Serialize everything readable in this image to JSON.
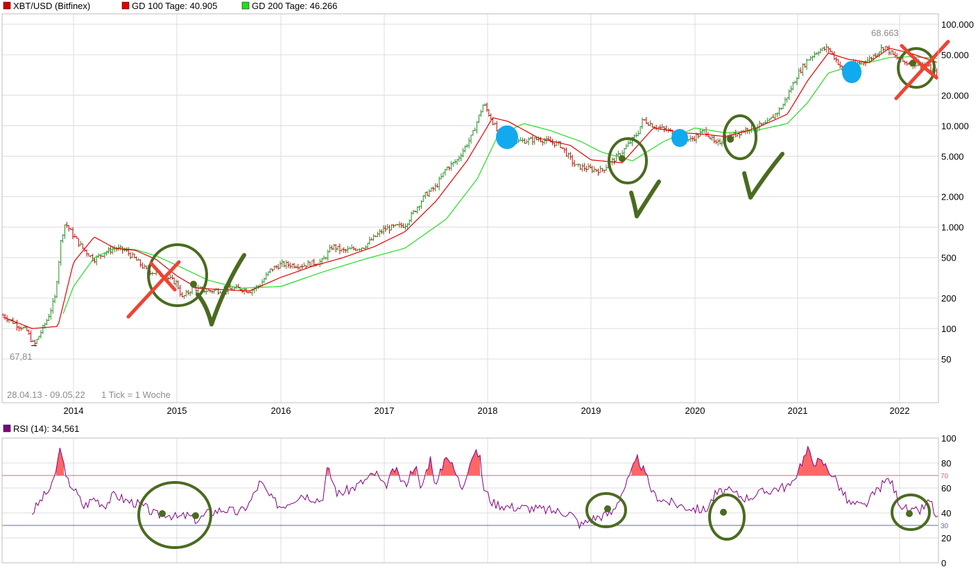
{
  "legend": {
    "main": [
      {
        "label": "XBT/USD (Bitfinex)",
        "color": "#cc0000"
      },
      {
        "label": "GD 100 Tage: 40.905",
        "color": "#e00000"
      },
      {
        "label": "GD 200 Tage: 46.266",
        "color": "#22dd22"
      }
    ],
    "rsi": {
      "label": "RSI (14): 34,561",
      "color": "#800080"
    }
  },
  "info": {
    "range": "28.04.13 - 09.05.22",
    "tick": "1 Tick = 1 Woche"
  },
  "annotations": {
    "high_label": "68.663",
    "low_label": "67,81"
  },
  "colors": {
    "price_up": "#228b22",
    "price_down": "#cc0000",
    "ma100": "#e00000",
    "ma200": "#22dd22",
    "rsi_line": "#800080",
    "rsi_fill": "#ff6666",
    "ob_line": "#e06666",
    "os_line": "#6666aa",
    "marker_green": "#4a6b1f",
    "marker_red": "#ee4433",
    "marker_blue": "#11aaee"
  },
  "chart_data": [
    {
      "type": "line",
      "name": "price",
      "y_scale": "log",
      "ylim": [
        20,
        120000
      ],
      "xlim": [
        2013.32,
        2022.36
      ],
      "x_tick_labels": [
        "2014",
        "2015",
        "2016",
        "2017",
        "2018",
        "2019",
        "2020",
        "2021",
        "2022"
      ],
      "y_tick_labels": [
        "100.000",
        "50.000",
        "20.000",
        "10.000",
        "5.000",
        "2.000",
        "1.000",
        "500",
        "200",
        "100",
        "50"
      ],
      "y_tick_values": [
        100000,
        50000,
        20000,
        10000,
        5000,
        2000,
        1000,
        500,
        200,
        100,
        50
      ],
      "high": 68663,
      "low": 67.81,
      "series": [
        {
          "name": "XBT/USD (Bitfinex)",
          "x": [
            2013.32,
            2013.45,
            2013.55,
            2013.62,
            2013.75,
            2013.82,
            2013.88,
            2013.92,
            2014.0,
            2014.1,
            2014.2,
            2014.3,
            2014.4,
            2014.5,
            2014.6,
            2014.7,
            2014.8,
            2014.9,
            2015.0,
            2015.05,
            2015.15,
            2015.3,
            2015.45,
            2015.6,
            2015.7,
            2015.8,
            2015.9,
            2016.0,
            2016.2,
            2016.4,
            2016.5,
            2016.6,
            2016.8,
            2017.0,
            2017.2,
            2017.4,
            2017.5,
            2017.6,
            2017.7,
            2017.85,
            2017.96,
            2018.05,
            2018.1,
            2018.3,
            2018.5,
            2018.7,
            2018.85,
            2018.96,
            2019.1,
            2019.3,
            2019.45,
            2019.5,
            2019.6,
            2019.8,
            2019.95,
            2020.1,
            2020.2,
            2020.3,
            2020.5,
            2020.7,
            2020.85,
            2021.0,
            2021.1,
            2021.2,
            2021.3,
            2021.45,
            2021.55,
            2021.7,
            2021.85,
            2021.95,
            2022.05,
            2022.15,
            2022.25,
            2022.36
          ],
          "values": [
            135,
            110,
            95,
            68,
            125,
            200,
            750,
            1100,
            820,
            600,
            480,
            560,
            620,
            590,
            480,
            380,
            350,
            320,
            280,
            200,
            250,
            235,
            240,
            250,
            235,
            270,
            380,
            430,
            420,
            460,
            650,
            580,
            640,
            960,
            1050,
            2100,
            2500,
            3800,
            4500,
            8000,
            16500,
            11000,
            8500,
            7000,
            7400,
            6500,
            4000,
            3800,
            3600,
            5500,
            8500,
            11500,
            10000,
            8500,
            7200,
            9000,
            6500,
            7500,
            9200,
            10500,
            15500,
            32000,
            45000,
            55000,
            58000,
            35000,
            40000,
            45000,
            61000,
            48000,
            42000,
            41000,
            40000,
            32000
          ]
        },
        {
          "name": "GD 100 Tage",
          "x": [
            2013.32,
            2013.6,
            2013.85,
            2014.0,
            2014.2,
            2014.4,
            2014.6,
            2014.8,
            2015.0,
            2015.2,
            2015.5,
            2015.7,
            2016.0,
            2016.3,
            2016.6,
            2016.9,
            2017.2,
            2017.5,
            2017.8,
            2018.05,
            2018.2,
            2018.5,
            2018.8,
            2019.0,
            2019.3,
            2019.6,
            2019.9,
            2020.1,
            2020.3,
            2020.6,
            2020.9,
            2021.1,
            2021.3,
            2021.5,
            2021.7,
            2021.9,
            2022.1,
            2022.36
          ],
          "values": [
            130,
            100,
            105,
            450,
            800,
            620,
            590,
            480,
            330,
            250,
            240,
            235,
            320,
            410,
            500,
            640,
            900,
            1800,
            4500,
            12000,
            11000,
            7500,
            6400,
            4600,
            4300,
            9500,
            8500,
            8200,
            7800,
            9500,
            13000,
            28000,
            52000,
            45000,
            42000,
            58000,
            52000,
            42000
          ]
        },
        {
          "name": "GD 200 Tage",
          "x": [
            2013.9,
            2014.0,
            2014.2,
            2014.4,
            2014.6,
            2014.8,
            2015.0,
            2015.3,
            2015.6,
            2016.0,
            2016.4,
            2016.8,
            2017.2,
            2017.6,
            2017.9,
            2018.1,
            2018.35,
            2018.6,
            2018.9,
            2019.1,
            2019.4,
            2019.7,
            2020.0,
            2020.3,
            2020.6,
            2020.9,
            2021.1,
            2021.3,
            2021.5,
            2021.7,
            2021.9,
            2022.1,
            2022.36
          ],
          "values": [
            140,
            260,
            500,
            620,
            600,
            520,
            420,
            300,
            250,
            260,
            360,
            480,
            620,
            1200,
            3000,
            8000,
            10500,
            9000,
            7000,
            5500,
            4500,
            7000,
            9500,
            8500,
            9000,
            10500,
            17000,
            33000,
            38000,
            42000,
            47000,
            48000,
            46000
          ]
        }
      ]
    },
    {
      "type": "area",
      "name": "RSI (14)",
      "ylim": [
        0,
        100
      ],
      "xlim": [
        2013.32,
        2022.36
      ],
      "y_tick_labels": [
        "100",
        "80",
        "60",
        "40",
        "20",
        "0"
      ],
      "y_tick_values": [
        100,
        80,
        60,
        40,
        20,
        0
      ],
      "overbought": 70,
      "oversold": 30,
      "overbought_label": "70",
      "oversold_label": "30",
      "series": [
        {
          "name": "RSI (14)",
          "x": [
            2013.6,
            2013.7,
            2013.8,
            2013.88,
            2013.92,
            2014.0,
            2014.1,
            2014.2,
            2014.3,
            2014.4,
            2014.5,
            2014.6,
            2014.7,
            2014.8,
            2014.9,
            2015.0,
            2015.1,
            2015.2,
            2015.3,
            2015.45,
            2015.6,
            2015.7,
            2015.8,
            2015.9,
            2016.0,
            2016.2,
            2016.4,
            2016.45,
            2016.55,
            2016.7,
            2016.85,
            2016.92,
            2017.0,
            2017.1,
            2017.2,
            2017.3,
            2017.35,
            2017.45,
            2017.5,
            2017.6,
            2017.7,
            2017.75,
            2017.85,
            2017.92,
            2017.96,
            2018.05,
            2018.2,
            2018.4,
            2018.6,
            2018.8,
            2018.9,
            2019.0,
            2019.2,
            2019.35,
            2019.45,
            2019.5,
            2019.6,
            2019.7,
            2019.9,
            2020.1,
            2020.2,
            2020.3,
            2020.5,
            2020.6,
            2020.8,
            2020.95,
            2021.0,
            2021.1,
            2021.15,
            2021.25,
            2021.35,
            2021.5,
            2021.65,
            2021.8,
            2021.9,
            2022.0,
            2022.1,
            2022.2,
            2022.3,
            2022.36
          ],
          "values": [
            40,
            52,
            62,
            95,
            68,
            60,
            45,
            52,
            46,
            55,
            50,
            48,
            44,
            38,
            40,
            36,
            38,
            34,
            40,
            43,
            40,
            48,
            65,
            52,
            45,
            55,
            50,
            76,
            55,
            60,
            68,
            72,
            60,
            75,
            62,
            80,
            58,
            85,
            60,
            88,
            70,
            60,
            86,
            88,
            60,
            48,
            45,
            44,
            42,
            40,
            30,
            35,
            40,
            65,
            84,
            75,
            55,
            50,
            45,
            42,
            55,
            58,
            52,
            55,
            60,
            62,
            75,
            90,
            82,
            80,
            70,
            48,
            45,
            60,
            68,
            48,
            40,
            42,
            50,
            34
          ]
        }
      ]
    }
  ]
}
